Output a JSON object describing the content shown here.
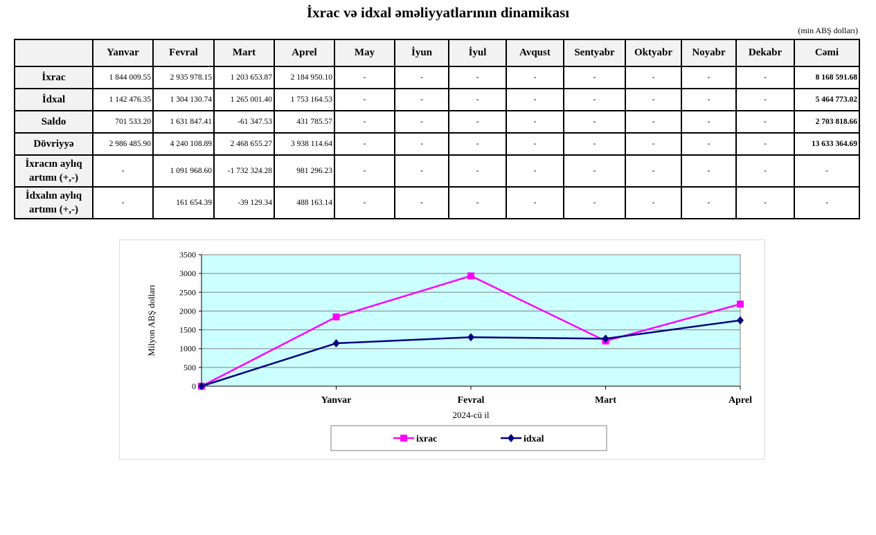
{
  "title": "İxrac və idxal əməliyyatlarının dinamikası",
  "unit": "(min ABŞ dolları)",
  "table": {
    "headers": [
      "",
      "Yanvar",
      "Fevral",
      "Mart",
      "Aprel",
      "May",
      "İyun",
      "İyul",
      "Avqust",
      "Sentyabr",
      "Oktyabr",
      "Noyabr",
      "Dekabr",
      "Cəmi"
    ],
    "rows": [
      {
        "label": "İxrac",
        "cells": [
          "1 844 009.55",
          "2 935 978.15",
          "1 203 653.87",
          "2 184 950.10",
          "-",
          "-",
          "-",
          "-",
          "-",
          "-",
          "-",
          "-"
        ],
        "total": "8 168 591.68"
      },
      {
        "label": "İdxal",
        "cells": [
          "1 142 476.35",
          "1 304 130.74",
          "1 265 001.40",
          "1 753 164.53",
          "-",
          "-",
          "-",
          "-",
          "-",
          "-",
          "-",
          "-"
        ],
        "total": "5 464 773.02"
      },
      {
        "label": "Saldo",
        "cells": [
          "701 533.20",
          "1 631 847.41",
          "-61 347.53",
          "431 785.57",
          "-",
          "-",
          "-",
          "-",
          "-",
          "-",
          "-",
          "-"
        ],
        "total": "2 703 818.66"
      },
      {
        "label": "Dövriyyə",
        "cells": [
          "2 986 485.90",
          "4 240 108.89",
          "2 468 655.27",
          "3 938 114.64",
          "-",
          "-",
          "-",
          "-",
          "-",
          "-",
          "-",
          "-"
        ],
        "total": "13 633 364.69"
      },
      {
        "label": "İxracın aylıq artımı (+,-)",
        "cells": [
          "-",
          "1 091 968.60",
          "-1 732 324.28",
          "981 296.23",
          "-",
          "-",
          "-",
          "-",
          "-",
          "-",
          "-",
          "-"
        ],
        "total": "-"
      },
      {
        "label": "İdxalın aylıq artımı (+,-)",
        "cells": [
          "-",
          "161 654.39",
          "-39 129.34",
          "488 163.14",
          "-",
          "-",
          "-",
          "-",
          "-",
          "-",
          "-",
          "-"
        ],
        "total": "-"
      }
    ]
  },
  "chart_data": {
    "type": "line",
    "categories": [
      "",
      "Yanvar",
      "Fevral",
      "Mart",
      "Aprel"
    ],
    "series": [
      {
        "name": "ixrac",
        "values": [
          0,
          1844.0,
          2936.0,
          1203.7,
          2185.0
        ],
        "color": "#ff00ff",
        "marker": "square"
      },
      {
        "name": "idxal",
        "values": [
          0,
          1142.5,
          1304.1,
          1265.0,
          1753.2
        ],
        "color": "#000080",
        "marker": "diamond"
      }
    ],
    "xlabel": "2024-cü il",
    "ylabel": "Milyon ABŞ dolları",
    "ylim": [
      0,
      3500
    ],
    "yticks": [
      0,
      500,
      1000,
      1500,
      2000,
      2500,
      3000,
      3500
    ],
    "grid": true,
    "plot_background": "#ccffff",
    "legend": "bottom"
  }
}
